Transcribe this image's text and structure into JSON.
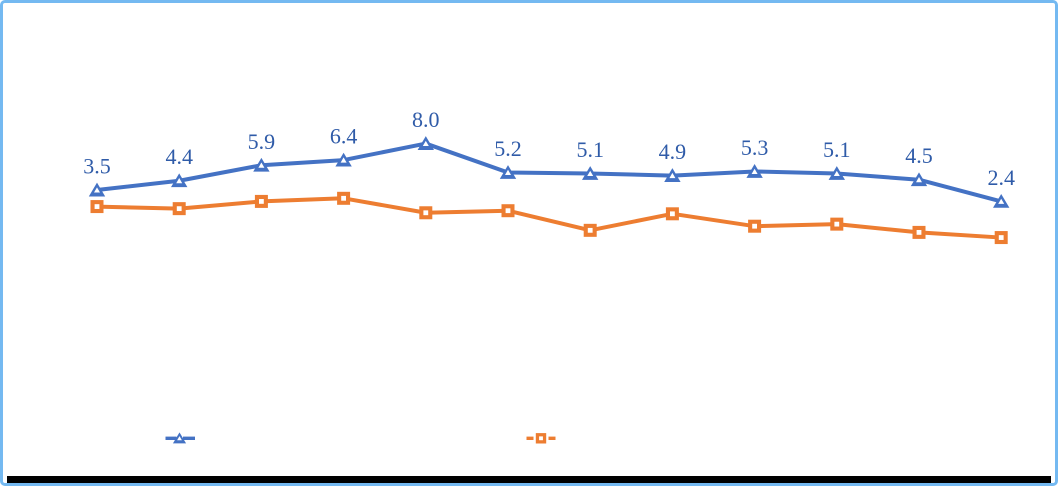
{
  "panel": {
    "background": "#FFFFFF",
    "border_color": "#74B9F1"
  },
  "chart_data": {
    "type": "line",
    "title": "",
    "xlabel": "",
    "ylabel": "",
    "x": [
      1,
      2,
      3,
      4,
      5,
      6,
      7,
      8,
      9,
      10,
      11,
      12
    ],
    "x_tick_labels": [],
    "grid": false,
    "axes_visible": false,
    "legend_position": "bottom-center",
    "ylim_estimate": [
      -2,
      9
    ],
    "series": [
      {
        "name": "blue-triangle-series",
        "color": "#4472C4",
        "marker": "triangle",
        "marker_inner_color": "#FFFFFF",
        "values": [
          3.5,
          4.4,
          5.9,
          6.4,
          8.0,
          5.2,
          5.1,
          4.9,
          5.3,
          5.1,
          4.5,
          2.4
        ],
        "data_labels": [
          "3.5",
          "4.4",
          "5.9",
          "6.4",
          "8.0",
          "5.2",
          "5.1",
          "4.9",
          "5.3",
          "5.1",
          "4.5",
          "2.4"
        ],
        "data_label_color": "#2F5BA8"
      },
      {
        "name": "orange-square-series",
        "color": "#ED7D31",
        "marker": "square",
        "marker_inner_color": "#FFFFFF",
        "values": [
          1.9,
          1.7,
          2.4,
          2.7,
          1.3,
          1.5,
          -0.4,
          1.2,
          0.0,
          0.2,
          -0.6,
          -1.1
        ],
        "data_labels": []
      }
    ]
  },
  "legend": {
    "items": [
      {
        "name": "blue-triangle-series",
        "marker": "triangle",
        "color": "#4472C4",
        "label": ""
      },
      {
        "name": "orange-square-series",
        "marker": "square",
        "color": "#ED7D31",
        "label": ""
      }
    ]
  },
  "decor": {
    "bottom_bar_color": "#000000"
  }
}
